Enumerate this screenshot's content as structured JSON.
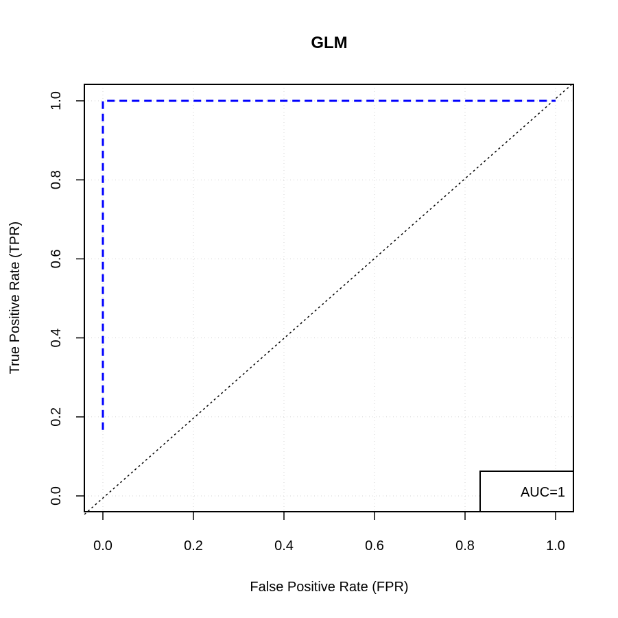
{
  "chart_data": {
    "type": "line",
    "title": "GLM",
    "xlabel": "False Positive Rate (FPR)",
    "ylabel": "True Positive Rate (TPR)",
    "xlim": [
      0,
      1
    ],
    "ylim": [
      0,
      1
    ],
    "x_ticks": [
      0.0,
      0.2,
      0.4,
      0.6,
      0.8,
      1.0
    ],
    "y_ticks": [
      0.0,
      0.2,
      0.4,
      0.6,
      0.8,
      1.0
    ],
    "x_tick_labels": [
      "0.0",
      "0.2",
      "0.4",
      "0.6",
      "0.8",
      "1.0"
    ],
    "y_tick_labels": [
      "0.0",
      "0.2",
      "0.4",
      "0.6",
      "0.8",
      "1.0"
    ],
    "grid": true,
    "series": [
      {
        "x": [
          0.0,
          0.0,
          1.0
        ],
        "y": [
          0.167,
          1.0,
          1.0
        ],
        "color": "#0000ff",
        "style": "dashed"
      },
      {
        "x": [
          0.0,
          1.0
        ],
        "y": [
          0.0,
          1.0
        ],
        "color": "#000000",
        "style": "dotted"
      }
    ],
    "legend": {
      "position": "bottom-right",
      "text": "AUC=1"
    }
  }
}
